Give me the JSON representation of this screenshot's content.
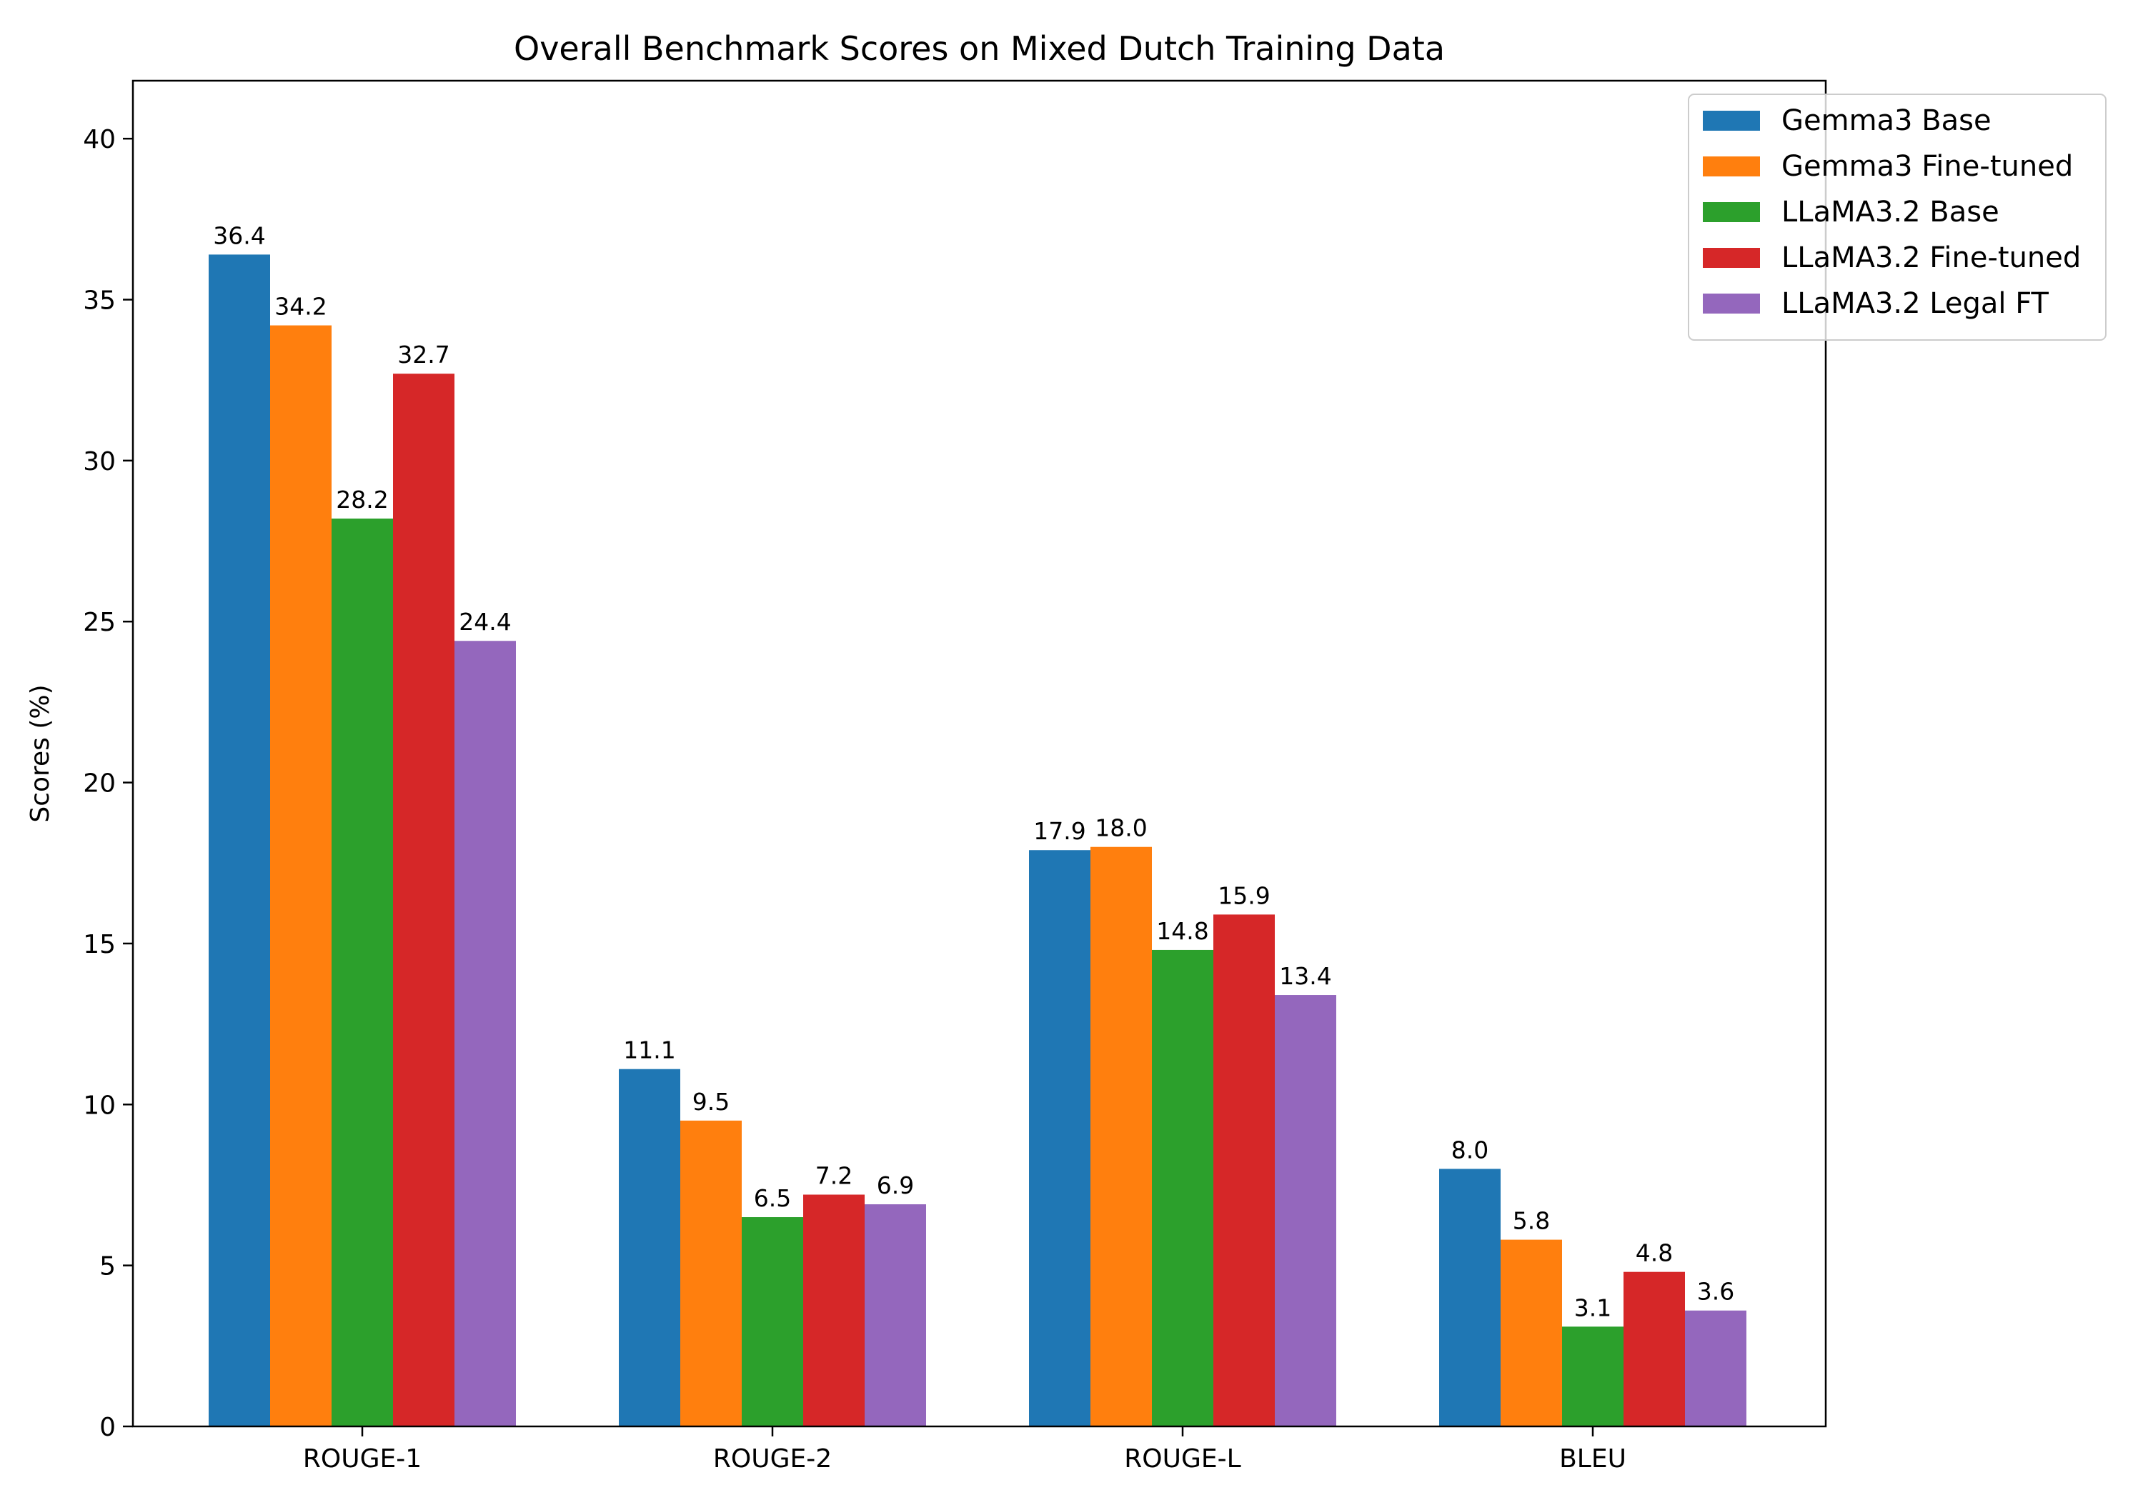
{
  "chart_data": {
    "type": "bar",
    "title": "Overall Benchmark Scores on Mixed Dutch Training Data",
    "xlabel": "",
    "ylabel": "Scores (%)",
    "categories": [
      "ROUGE-1",
      "ROUGE-2",
      "ROUGE-L",
      "BLEU"
    ],
    "series": [
      {
        "name": "Gemma3 Base",
        "color": "#1f77b4",
        "values": [
          36.4,
          11.1,
          17.9,
          8.0
        ]
      },
      {
        "name": "Gemma3 Fine-tuned",
        "color": "#ff7f0e",
        "values": [
          34.2,
          9.5,
          18.0,
          5.8
        ]
      },
      {
        "name": "LLaMA3.2 Base",
        "color": "#2ca02c",
        "values": [
          28.2,
          6.5,
          14.8,
          3.1
        ]
      },
      {
        "name": "LLaMA3.2 Fine-tuned",
        "color": "#d62728",
        "values": [
          32.7,
          7.2,
          15.9,
          4.8
        ]
      },
      {
        "name": "LLaMA3.2 Legal FT",
        "color": "#9467bd",
        "values": [
          24.4,
          6.9,
          13.4,
          3.6
        ]
      }
    ],
    "ylim": [
      0,
      41.8
    ],
    "yticks": [
      0,
      5,
      10,
      15,
      20,
      25,
      30,
      35,
      40
    ],
    "grid": false,
    "legend_position": "top-right"
  }
}
